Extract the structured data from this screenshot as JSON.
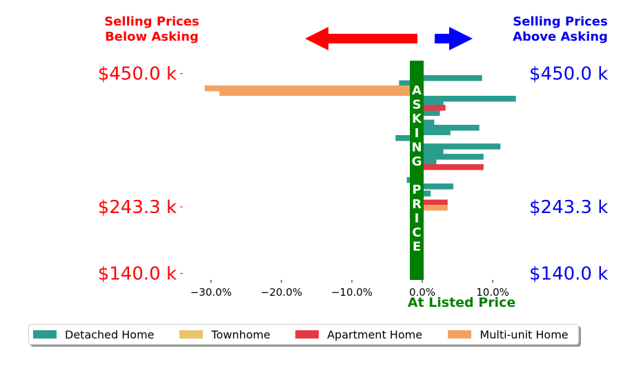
{
  "header": {
    "left_line1": "Selling Prices",
    "left_line2": "Below Asking",
    "right_line1": "Selling Prices",
    "right_line2": "Above Asking",
    "left_color": "#ff0000",
    "right_color": "#0000ee"
  },
  "colors": {
    "axis_left": "#ff0000",
    "axis_right": "#0000ee",
    "asking_bar": "#008000",
    "arrow_left": "#ff0000",
    "arrow_right": "#0000ff"
  },
  "chart_data": {
    "type": "bar",
    "orientation": "horizontal",
    "xlabel": "At Listed Price",
    "xticks": [
      -30,
      -20,
      -10,
      0,
      10
    ],
    "xtick_labels": [
      "−30.0%",
      "−20.0%",
      "−10.0%",
      "0.0%",
      "10.0%"
    ],
    "xlim": [
      -34,
      14.5
    ],
    "ylim": [
      130,
      470
    ],
    "yticks": [
      450,
      243.3,
      140
    ],
    "ytick_labels": [
      "$450.0 k",
      "$243.3 k",
      "$140.0 k"
    ],
    "vertical_annotation": "ASKING PRICE",
    "series": [
      {
        "name": "Detached Home",
        "color": "#2a9d8f",
        "points": [
          [
            443,
            8.5
          ],
          [
            435,
            -3.3
          ],
          [
            411,
            13.3
          ],
          [
            404,
            3.0
          ],
          [
            389,
            2.5
          ],
          [
            374,
            1.7
          ],
          [
            366,
            8.1
          ],
          [
            359,
            4.0
          ],
          [
            350,
            -3.8
          ],
          [
            337,
            11.1
          ],
          [
            329,
            3.0
          ],
          [
            321,
            8.7
          ],
          [
            313,
            2.0
          ],
          [
            285,
            -2.2
          ],
          [
            275,
            4.4
          ],
          [
            264,
            1.2
          ]
        ]
      },
      {
        "name": "Townhome",
        "color": "#e9c46a",
        "points": []
      },
      {
        "name": "Apartment Home",
        "color": "#e63946",
        "points": [
          [
            397,
            3.3
          ],
          [
            305,
            8.7
          ],
          [
            250,
            3.6
          ]
        ]
      },
      {
        "name": "Multi-unit Home",
        "color": "#f4a261",
        "points": [
          [
            427,
            -30.9
          ],
          [
            420,
            -28.8
          ],
          [
            242,
            3.6
          ]
        ]
      }
    ],
    "legend": {
      "placement": "bottom",
      "columns": 4
    }
  }
}
